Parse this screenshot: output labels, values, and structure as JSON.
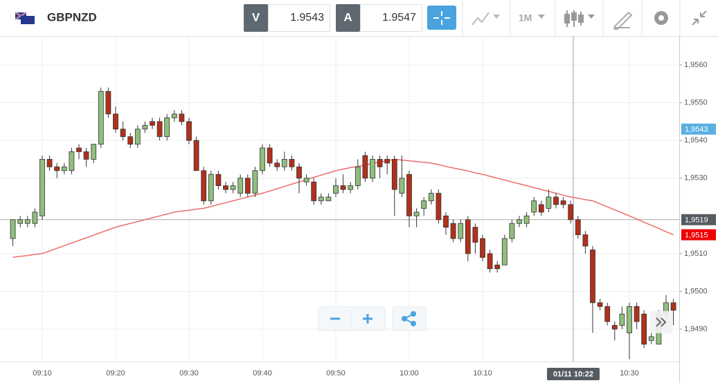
{
  "toolbar": {
    "symbol": "GBPNZD",
    "bid_label": "V",
    "bid": "1.9543",
    "ask_label": "A",
    "ask": "1.9547",
    "timeframe": "1M"
  },
  "chart_data": {
    "type": "candlestick",
    "categories": [
      null,
      null,
      null,
      null,
      "09:10",
      null,
      null,
      null,
      null,
      null,
      null,
      null,
      null,
      null,
      "09:20",
      null,
      null,
      null,
      null,
      null,
      null,
      null,
      null,
      null,
      "09:30",
      null,
      null,
      null,
      null,
      null,
      null,
      null,
      null,
      null,
      "09:40",
      null,
      null,
      null,
      null,
      null,
      null,
      null,
      null,
      null,
      "09:50",
      null,
      null,
      null,
      null,
      null,
      null,
      null,
      null,
      null,
      "10:00",
      null,
      null,
      null,
      null,
      null,
      null,
      null,
      null,
      null,
      "10:10",
      null,
      null,
      null,
      null,
      null,
      null,
      null,
      null,
      null,
      null,
      null,
      null,
      null,
      null,
      null,
      null,
      null,
      null,
      null,
      "10:30",
      null,
      null,
      null,
      null,
      null,
      null
    ],
    "open": [
      1.9514,
      1.9518,
      1.9518,
      1.9518,
      1.952,
      1.9535,
      1.9533,
      1.9532,
      1.9532,
      1.9538,
      1.9537,
      1.9535,
      1.9539,
      1.9553,
      1.9547,
      1.9543,
      1.9541,
      1.9539,
      1.9543,
      1.9545,
      1.9545,
      1.9541,
      1.9546,
      1.9547,
      1.9545,
      1.954,
      1.9532,
      1.9524,
      1.9531,
      1.9528,
      1.9527,
      1.9526,
      1.953,
      1.9526,
      1.9532,
      1.9538,
      1.9534,
      1.9533,
      1.9535,
      1.9533,
      1.9529,
      1.9529,
      1.9524,
      1.9524,
      1.9526,
      1.9528,
      1.9527,
      1.9528,
      1.9536,
      1.953,
      1.9535,
      1.9535,
      1.9535,
      1.9526,
      1.9531,
      1.952,
      1.9522,
      1.9524,
      1.9526,
      1.952,
      1.9518,
      1.9514,
      1.9519,
      1.9517,
      1.9514,
      1.951,
      1.9507,
      1.9507,
      1.9514,
      1.9518,
      1.9518,
      1.9521,
      1.9523,
      1.9522,
      1.9525,
      1.9524,
      1.9523,
      1.9519,
      1.9515,
      1.9511,
      1.9497,
      1.9496,
      1.9491,
      1.9491,
      1.9489,
      1.9496,
      1.9494,
      1.9487,
      1.9486,
      1.9494,
      1.9497
    ],
    "high": [
      1.9519,
      1.952,
      1.952,
      1.9522,
      1.9536,
      1.9536,
      1.9534,
      1.9534,
      1.9538,
      1.9539,
      1.9538,
      1.9539,
      1.9554,
      1.9554,
      1.9549,
      1.9545,
      1.9542,
      1.9544,
      1.9545,
      1.9546,
      1.9546,
      1.9547,
      1.9548,
      1.9548,
      1.9546,
      1.9541,
      1.9533,
      1.9532,
      1.9532,
      1.9529,
      1.9529,
      1.9531,
      1.9531,
      1.9533,
      1.9539,
      1.9539,
      1.9535,
      1.9537,
      1.9536,
      1.9534,
      1.9531,
      1.953,
      1.9526,
      1.9526,
      1.953,
      1.9531,
      1.9529,
      1.9535,
      1.9537,
      1.9536,
      1.9536,
      1.9536,
      1.9536,
      1.9536,
      1.9532,
      1.9522,
      1.9525,
      1.9527,
      1.9527,
      1.9521,
      1.9519,
      1.9519,
      1.952,
      1.9518,
      1.9515,
      1.9511,
      1.9508,
      1.9515,
      1.9519,
      1.952,
      1.9521,
      1.9525,
      1.9524,
      1.9527,
      1.9526,
      1.9525,
      1.9524,
      1.952,
      1.9516,
      1.9512,
      1.9498,
      1.9497,
      1.9492,
      1.9496,
      1.9497,
      1.9497,
      1.9495,
      1.9489,
      1.9495,
      1.9499,
      1.9498
    ],
    "low": [
      1.9512,
      1.9517,
      1.9517,
      1.9517,
      1.9519,
      1.9532,
      1.953,
      1.9531,
      1.9531,
      1.9535,
      1.9533,
      1.9534,
      1.9538,
      1.9546,
      1.9542,
      1.954,
      1.9538,
      1.9538,
      1.9542,
      1.9543,
      1.954,
      1.954,
      1.9545,
      1.9544,
      1.9539,
      1.9532,
      1.9523,
      1.9523,
      1.9527,
      1.9526,
      1.9526,
      1.9525,
      1.9525,
      1.9525,
      1.9531,
      1.9533,
      1.9532,
      1.9532,
      1.9532,
      1.9526,
      1.9528,
      1.9523,
      1.9523,
      1.9524,
      1.9525,
      1.9526,
      1.9526,
      1.9527,
      1.9529,
      1.9529,
      1.953,
      1.9531,
      1.952,
      1.9525,
      1.9517,
      1.9517,
      1.952,
      1.9523,
      1.9518,
      1.9515,
      1.9513,
      1.9513,
      1.9508,
      1.951,
      1.9508,
      1.9505,
      1.9505,
      1.9507,
      1.9513,
      1.9517,
      1.9517,
      1.952,
      1.952,
      1.9521,
      1.9522,
      1.9522,
      1.9518,
      1.9514,
      1.951,
      1.9489,
      1.9495,
      1.9491,
      1.9487,
      1.949,
      1.9482,
      1.949,
      1.9485,
      1.9486,
      1.9486,
      1.9492,
      1.9491
    ],
    "close": [
      1.9519,
      1.9519,
      1.9519,
      1.9521,
      1.9535,
      1.9533,
      1.9532,
      1.9533,
      1.9537,
      1.9537,
      1.9535,
      1.9539,
      1.9553,
      1.9547,
      1.9543,
      1.9541,
      1.9539,
      1.9543,
      1.9544,
      1.9544,
      1.9541,
      1.9546,
      1.9547,
      1.9545,
      1.954,
      1.9532,
      1.9524,
      1.9531,
      1.9528,
      1.9527,
      1.9528,
      1.953,
      1.9526,
      1.9532,
      1.9538,
      1.9534,
      1.9533,
      1.9535,
      1.9533,
      1.953,
      1.953,
      1.9524,
      1.9525,
      1.9525,
      1.9528,
      1.9527,
      1.9528,
      1.9533,
      1.953,
      1.9535,
      1.9533,
      1.9534,
      1.9527,
      1.953,
      1.952,
      1.9521,
      1.9524,
      1.9526,
      1.9519,
      1.9517,
      1.9514,
      1.9518,
      1.951,
      1.9513,
      1.9509,
      1.9506,
      1.9506,
      1.9514,
      1.9518,
      1.9519,
      1.952,
      1.9524,
      1.9521,
      1.9525,
      1.9523,
      1.9523,
      1.9519,
      1.9515,
      1.9512,
      1.9497,
      1.9496,
      1.9492,
      1.949,
      1.9494,
      1.9496,
      1.9492,
      1.9486,
      1.9488,
      1.9494,
      1.9497,
      1.9495
    ],
    "up_color": "#8fbf7c",
    "down_color": "#b1301c",
    "moving_average": {
      "color": "#ee6b6b",
      "values": [
        1.9509,
        1.95093,
        1.95095,
        1.95098,
        1.951,
        1.95107,
        1.95114,
        1.95121,
        1.95128,
        1.95135,
        1.95142,
        1.95149,
        1.95156,
        1.95163,
        1.9517,
        1.95175,
        1.9518,
        1.95185,
        1.9519,
        1.95195,
        1.952,
        1.95205,
        1.9521,
        1.95213,
        1.95215,
        1.95218,
        1.9522,
        1.95225,
        1.9523,
        1.95235,
        1.9524,
        1.95245,
        1.9525,
        1.95255,
        1.9526,
        1.95266,
        1.95272,
        1.95278,
        1.95284,
        1.9529,
        1.95296,
        1.95302,
        1.95308,
        1.95314,
        1.9532,
        1.95324,
        1.95328,
        1.95331,
        1.95335,
        1.95339,
        1.95343,
        1.95346,
        1.9535,
        1.95348,
        1.95346,
        1.95344,
        1.95342,
        1.9534,
        1.95336,
        1.95331,
        1.95327,
        1.95323,
        1.95319,
        1.95314,
        1.9531,
        1.95305,
        1.953,
        1.95295,
        1.9529,
        1.95285,
        1.9528,
        1.95275,
        1.9527,
        1.95265,
        1.9526,
        1.95255,
        1.9525,
        1.95247,
        1.95243,
        1.9524,
        1.95232,
        1.95224,
        1.95216,
        1.95208,
        1.952,
        1.95192,
        1.95183,
        1.95175,
        1.95167,
        1.95158,
        1.9515
      ]
    },
    "ylim": [
      1.94814,
      1.95675
    ],
    "yticks": [
      {
        "value": 1.949,
        "label": "1,9490"
      },
      {
        "value": 1.95,
        "label": "1,9500"
      },
      {
        "value": 1.951,
        "label": "1,9510"
      },
      {
        "value": 1.953,
        "label": "1,9530"
      },
      {
        "value": 1.954,
        "label": "1,9540"
      },
      {
        "value": 1.955,
        "label": "1,9550"
      },
      {
        "value": 1.956,
        "label": "1,9560"
      }
    ],
    "grid": true,
    "price_labels": [
      {
        "value": 1.9543,
        "label": "1,9543",
        "color": "#5aaee0"
      },
      {
        "value": 1.9515,
        "label": "1,9515",
        "color": "#ee0000"
      }
    ],
    "crosshair": {
      "value": 1.9519,
      "label": "1,9519",
      "color": "#555b61",
      "x_label": "01/11 10:22"
    }
  }
}
